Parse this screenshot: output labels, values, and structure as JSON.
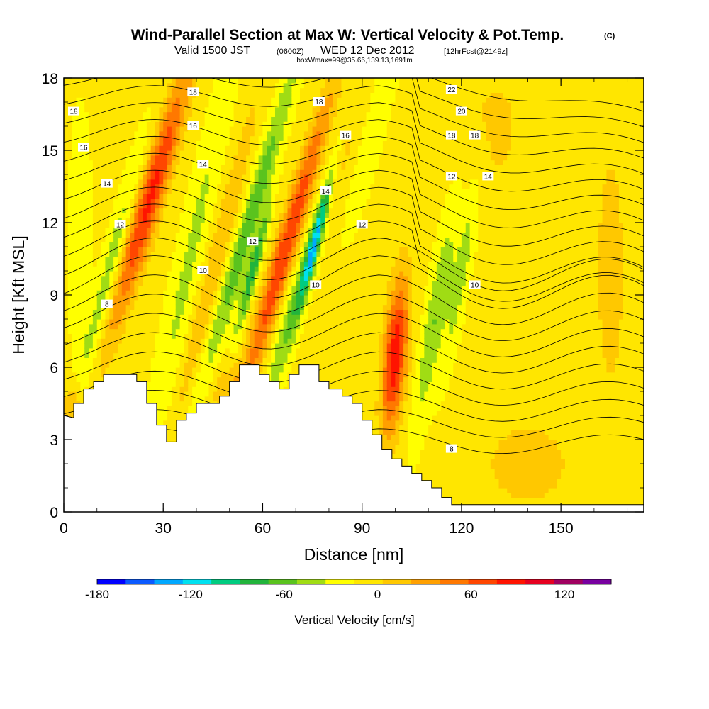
{
  "header": {
    "title": "Wind-Parallel Section at Max W: Vertical Velocity & Pot.Temp.",
    "copyright": "(C)",
    "valid_prefix": "Valid 1500 JST",
    "valid_utc": "(0600Z)",
    "valid_date": "WED 12 Dec 2012",
    "forecast_note": "[12hrFcst@2149z]",
    "box_info": "boxWmax=99@35.66,139.13,1691m"
  },
  "chart_data": {
    "type": "heatmap",
    "xlabel": "Distance [nm]",
    "ylabel": "Height [Kft MSL]",
    "xlim": [
      0,
      175
    ],
    "ylim": [
      0,
      18
    ],
    "x_ticks": [
      "0",
      "30",
      "60",
      "90",
      "120",
      "150"
    ],
    "x_tick_values": [
      0,
      30,
      60,
      90,
      120,
      150
    ],
    "y_ticks": [
      "0",
      "3",
      "6",
      "9",
      "12",
      "15",
      "18"
    ],
    "y_tick_values": [
      0,
      3,
      6,
      9,
      12,
      15,
      18
    ],
    "colorbar": {
      "label": "Vertical Velocity [cm/s]",
      "range": [
        -180,
        150
      ],
      "step": 20,
      "tick_labels": [
        "-180",
        "-120",
        "-60",
        "0",
        "60",
        "120"
      ],
      "tick_values": [
        -180,
        -120,
        -60,
        0,
        60,
        120
      ],
      "colors": [
        "#0000ff",
        "#0b5aff",
        "#00a8ff",
        "#00e1f0",
        "#00cc80",
        "#22b43c",
        "#5ac31e",
        "#a0dc14",
        "#ffff00",
        "#ffe600",
        "#ffc800",
        "#ffa000",
        "#ff7800",
        "#ff4600",
        "#ff1400",
        "#e60020",
        "#a00060",
        "#7800a0"
      ]
    },
    "terrain_kft": [
      [
        0,
        4.0
      ],
      [
        3,
        3.9
      ],
      [
        3,
        4.5
      ],
      [
        6,
        4.5
      ],
      [
        6,
        5.1
      ],
      [
        9,
        5.1
      ],
      [
        9,
        5.4
      ],
      [
        12,
        5.4
      ],
      [
        12,
        5.7
      ],
      [
        22,
        5.7
      ],
      [
        22,
        5.4
      ],
      [
        25,
        5.4
      ],
      [
        25,
        4.5
      ],
      [
        28,
        4.5
      ],
      [
        28,
        3.6
      ],
      [
        31,
        3.6
      ],
      [
        31,
        2.9
      ],
      [
        34,
        2.9
      ],
      [
        34,
        3.8
      ],
      [
        37,
        3.8
      ],
      [
        37,
        4.1
      ],
      [
        40,
        4.1
      ],
      [
        40,
        4.5
      ],
      [
        47,
        4.5
      ],
      [
        47,
        4.8
      ],
      [
        50,
        4.8
      ],
      [
        50,
        5.4
      ],
      [
        53,
        5.4
      ],
      [
        53,
        6.1
      ],
      [
        59,
        6.1
      ],
      [
        59,
        5.7
      ],
      [
        62,
        5.7
      ],
      [
        62,
        5.4
      ],
      [
        65,
        5.4
      ],
      [
        65,
        5.1
      ],
      [
        68,
        5.1
      ],
      [
        68,
        5.7
      ],
      [
        71,
        5.7
      ],
      [
        71,
        6.1
      ],
      [
        77,
        6.1
      ],
      [
        77,
        5.4
      ],
      [
        80,
        5.4
      ],
      [
        80,
        5.1
      ],
      [
        84,
        5.1
      ],
      [
        84,
        4.8
      ],
      [
        87,
        4.8
      ],
      [
        87,
        4.5
      ],
      [
        90,
        4.5
      ],
      [
        90,
        3.8
      ],
      [
        93,
        3.8
      ],
      [
        93,
        3.2
      ],
      [
        96,
        3.2
      ],
      [
        96,
        2.6
      ],
      [
        99,
        2.6
      ],
      [
        99,
        2.2
      ],
      [
        102,
        2.2
      ],
      [
        102,
        1.9
      ],
      [
        105,
        1.9
      ],
      [
        105,
        1.6
      ],
      [
        108,
        1.6
      ],
      [
        108,
        1.3
      ],
      [
        111,
        1.3
      ],
      [
        111,
        1.0
      ],
      [
        114,
        1.0
      ],
      [
        114,
        0.6
      ],
      [
        117,
        0.6
      ],
      [
        117,
        0.3
      ],
      [
        175,
        0.3
      ]
    ],
    "velocity_background_cms": 5,
    "velocity_features": [
      {
        "x": 26,
        "y": 13.0,
        "sx": 4,
        "sy": 5.5,
        "tilt": 0.35,
        "value": 100
      },
      {
        "x": 38,
        "y": 10.5,
        "sx": 4,
        "sy": 8.0,
        "tilt": 0.25,
        "value": -30
      },
      {
        "x": 56,
        "y": 12.0,
        "sx": 3,
        "sy": 7.0,
        "tilt": 0.35,
        "value": -60
      },
      {
        "x": 57,
        "y": 10.0,
        "sx": 1.6,
        "sy": 2.5,
        "tilt": 0.3,
        "value": -80
      },
      {
        "x": 67,
        "y": 11.0,
        "sx": 3.3,
        "sy": 6.5,
        "tilt": 0.35,
        "value": 95
      },
      {
        "x": 75,
        "y": 11.0,
        "sx": 3,
        "sy": 6.0,
        "tilt": 0.35,
        "value": -70
      },
      {
        "x": 76,
        "y": 11.3,
        "sx": 1.5,
        "sy": 2.5,
        "tilt": 0.3,
        "value": -100
      },
      {
        "x": 82,
        "y": 14.0,
        "sx": 3,
        "sy": 3.5,
        "tilt": 0.35,
        "value": 60
      },
      {
        "x": 94,
        "y": 16.0,
        "sx": 3,
        "sy": 4.0,
        "tilt": 0.3,
        "value": -25
      },
      {
        "x": 100,
        "y": 6.5,
        "sx": 3.5,
        "sy": 3.2,
        "tilt": 0.1,
        "value": 110
      },
      {
        "x": 112,
        "y": 8.0,
        "sx": 3,
        "sy": 4.5,
        "tilt": 0.2,
        "value": -45
      },
      {
        "x": 120,
        "y": 10.0,
        "sx": 2.5,
        "sy": 4.0,
        "tilt": 0.2,
        "value": -35
      },
      {
        "x": 5,
        "y": 11.0,
        "sx": 3,
        "sy": 5.0,
        "tilt": 0.0,
        "value": -25
      },
      {
        "x": 14,
        "y": 10.0,
        "sx": 3,
        "sy": 5.0,
        "tilt": 0.3,
        "value": -40
      },
      {
        "x": 46,
        "y": 10.5,
        "sx": 3,
        "sy": 7.0,
        "tilt": 0.3,
        "value": 35
      },
      {
        "x": 140,
        "y": 2.0,
        "sx": 15,
        "sy": 2.0,
        "tilt": 0.0,
        "value": 25
      },
      {
        "x": 165,
        "y": 10.0,
        "sx": 5,
        "sy": 6.0,
        "tilt": 0.0,
        "value": 25
      },
      {
        "x": 130,
        "y": 16.0,
        "sx": 10,
        "sy": 3.0,
        "tilt": 0.0,
        "value": 20
      },
      {
        "x": 3,
        "y": 4.2,
        "sx": 3,
        "sy": 1.2,
        "tilt": 0.0,
        "value": 40
      },
      {
        "x": 50,
        "y": 5.0,
        "sx": 6,
        "sy": 1.2,
        "tilt": 0.0,
        "value": 30
      }
    ],
    "contour_labels": [
      {
        "text": "18",
        "x": 39,
        "y": 17.4
      },
      {
        "text": "18",
        "x": 3,
        "y": 16.6
      },
      {
        "text": "16",
        "x": 39,
        "y": 16.0
      },
      {
        "text": "16",
        "x": 6,
        "y": 15.1
      },
      {
        "text": "14",
        "x": 42,
        "y": 14.4
      },
      {
        "text": "14",
        "x": 13,
        "y": 13.6
      },
      {
        "text": "12",
        "x": 17,
        "y": 11.9
      },
      {
        "text": "12",
        "x": 57,
        "y": 11.2
      },
      {
        "text": "10",
        "x": 42,
        "y": 10.0
      },
      {
        "text": "10",
        "x": 76,
        "y": 9.4
      },
      {
        "text": "8",
        "x": 13,
        "y": 8.6
      },
      {
        "text": "18",
        "x": 77,
        "y": 17.0
      },
      {
        "text": "16",
        "x": 85,
        "y": 15.6
      },
      {
        "text": "14",
        "x": 79,
        "y": 13.3
      },
      {
        "text": "12",
        "x": 90,
        "y": 11.9
      },
      {
        "text": "22",
        "x": 117,
        "y": 17.5
      },
      {
        "text": "20",
        "x": 120,
        "y": 16.6
      },
      {
        "text": "18",
        "x": 117,
        "y": 15.6
      },
      {
        "text": "18",
        "x": 124,
        "y": 15.6
      },
      {
        "text": "12",
        "x": 117,
        "y": 13.9
      },
      {
        "text": "14",
        "x": 128,
        "y": 13.9
      },
      {
        "text": "10",
        "x": 124,
        "y": 9.4
      },
      {
        "text": "8",
        "x": 117,
        "y": 2.6
      }
    ]
  }
}
